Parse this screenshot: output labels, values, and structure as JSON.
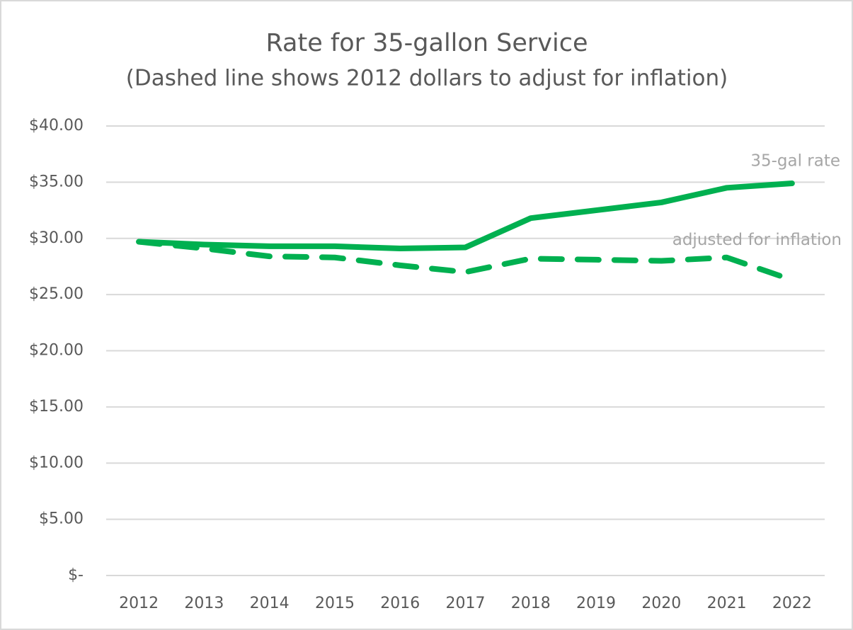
{
  "chart_data": {
    "type": "line",
    "title": "Rate for 35-gallon Service",
    "subtitle": "(Dashed line shows 2012 dollars to adjust for inflation)",
    "categories": [
      "2012",
      "2013",
      "2014",
      "2015",
      "2016",
      "2017",
      "2018",
      "2019",
      "2020",
      "2021",
      "2022"
    ],
    "series": [
      {
        "name": "35-gal rate",
        "color": "#00b050",
        "dashed": false,
        "values": [
          29.7,
          29.45,
          29.3,
          29.3,
          29.1,
          29.2,
          31.8,
          32.5,
          33.2,
          34.5,
          34.9
        ]
      },
      {
        "name": "adjusted for inflation",
        "color": "#00b050",
        "dashed": true,
        "values": [
          29.7,
          29.1,
          28.4,
          28.3,
          27.6,
          27.0,
          28.2,
          28.1,
          28.0,
          28.3,
          26.3
        ]
      }
    ],
    "ylim": [
      0,
      40
    ],
    "yticks": [
      {
        "value": 0,
        "label": "$-"
      },
      {
        "value": 5,
        "label": "$5.00"
      },
      {
        "value": 10,
        "label": "$10.00"
      },
      {
        "value": 15,
        "label": "$15.00"
      },
      {
        "value": 20,
        "label": "$20.00"
      },
      {
        "value": 25,
        "label": "$25.00"
      },
      {
        "value": 30,
        "label": "$30.00"
      },
      {
        "value": 35,
        "label": "$35.00"
      },
      {
        "value": 40,
        "label": "$40.00"
      }
    ],
    "grid": true
  }
}
